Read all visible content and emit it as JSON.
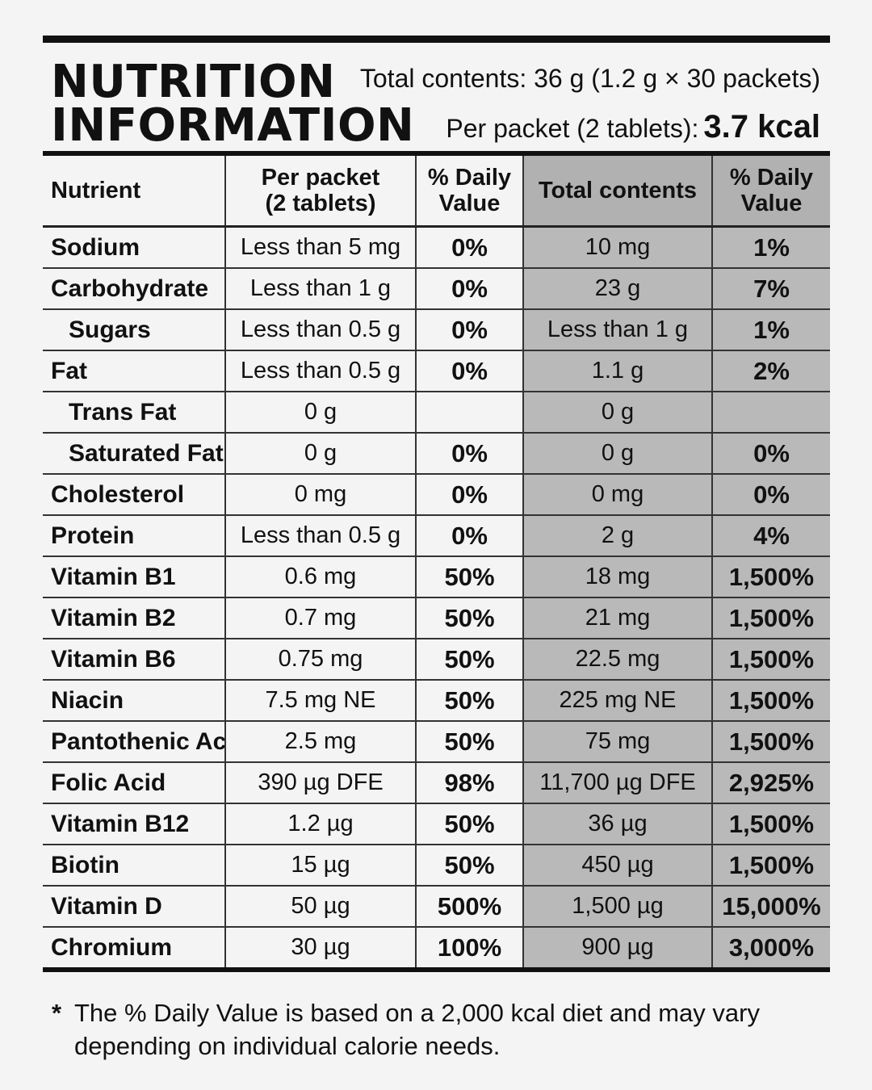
{
  "header": {
    "title_line1": "NUTRITION",
    "title_line2": "INFORMATION",
    "total_contents": "Total contents: 36 g (1.2 g × 30 packets)",
    "per_packet_label": "Per packet (2 tablets):",
    "per_packet_kcal": "3.7 kcal"
  },
  "table": {
    "columns": {
      "nutrient": "Nutrient",
      "per_packet_line1": "Per packet",
      "per_packet_line2": "(2 tablets)",
      "dv_line1": "% Daily",
      "dv_line2": "Value",
      "total_contents": "Total contents",
      "dv2_line1": "% Daily",
      "dv2_line2": "Value"
    },
    "rows": [
      {
        "name": "Sodium",
        "per_packet": "Less than 5 mg",
        "dv": "0%",
        "total": "10 mg",
        "total_dv": "1%"
      },
      {
        "name": "Carbohydrate",
        "per_packet": "Less than 1 g",
        "dv": "0%",
        "total": "23 g",
        "total_dv": "7%"
      },
      {
        "name": "Sugars",
        "per_packet": "Less than 0.5 g",
        "dv": "0%",
        "total": "Less than 1 g",
        "total_dv": "1%"
      },
      {
        "name": "Fat",
        "per_packet": "Less than 0.5 g",
        "dv": "0%",
        "total": "1.1 g",
        "total_dv": "2%"
      },
      {
        "name": "Trans Fat",
        "per_packet": "0 g",
        "dv": "",
        "total": "0 g",
        "total_dv": ""
      },
      {
        "name": "Saturated Fat",
        "per_packet": "0 g",
        "dv": "0%",
        "total": "0 g",
        "total_dv": "0%"
      },
      {
        "name": "Cholesterol",
        "per_packet": "0 mg",
        "dv": "0%",
        "total": "0 mg",
        "total_dv": "0%"
      },
      {
        "name": "Protein",
        "per_packet": "Less than 0.5 g",
        "dv": "0%",
        "total": "2 g",
        "total_dv": "4%"
      },
      {
        "name": "Vitamin B1",
        "per_packet": "0.6 mg",
        "dv": "50%",
        "total": "18 mg",
        "total_dv": "1,500%"
      },
      {
        "name": "Vitamin B2",
        "per_packet": "0.7 mg",
        "dv": "50%",
        "total": "21 mg",
        "total_dv": "1,500%"
      },
      {
        "name": "Vitamin B6",
        "per_packet": "0.75 mg",
        "dv": "50%",
        "total": "22.5 mg",
        "total_dv": "1,500%"
      },
      {
        "name": "Niacin",
        "per_packet": "7.5 mg NE",
        "dv": "50%",
        "total": "225 mg NE",
        "total_dv": "1,500%"
      },
      {
        "name": "Pantothenic Acid",
        "per_packet": "2.5 mg",
        "dv": "50%",
        "total": "75 mg",
        "total_dv": "1,500%"
      },
      {
        "name": "Folic Acid",
        "per_packet": "390 µg DFE",
        "dv": "98%",
        "total": "11,700 µg DFE",
        "total_dv": "2,925%"
      },
      {
        "name": "Vitamin B12",
        "per_packet": "1.2 µg",
        "dv": "50%",
        "total": "36 µg",
        "total_dv": "1,500%"
      },
      {
        "name": "Biotin",
        "per_packet": "15 µg",
        "dv": "50%",
        "total": "450 µg",
        "total_dv": "1,500%"
      },
      {
        "name": "Vitamin D",
        "per_packet": "50 µg",
        "dv": "500%",
        "total": "1,500 µg",
        "total_dv": "15,000%"
      },
      {
        "name": "Chromium",
        "per_packet": "30 µg",
        "dv": "100%",
        "total": "900 µg",
        "total_dv": "3,000%"
      }
    ]
  },
  "footnote": {
    "marker": "*",
    "text_line1": "The % Daily Value is based on a 2,000 kcal diet and may vary",
    "text_line2": "depending on individual calorie needs."
  }
}
